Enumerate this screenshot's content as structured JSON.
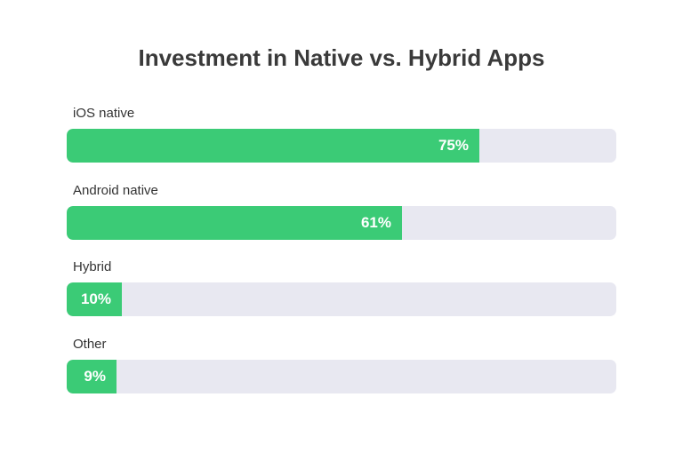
{
  "colors": {
    "bar_fill": "#3bcb76",
    "bar_track": "#e8e8f1",
    "title": "#3a3a3a",
    "label": "#333333",
    "value_text": "#ffffff"
  },
  "chart_data": {
    "type": "bar",
    "orientation": "horizontal",
    "title": "Investment in Native vs. Hybrid Apps",
    "categories": [
      "iOS native",
      "Android native",
      "Hybrid",
      "Other"
    ],
    "values": [
      75,
      61,
      10,
      9
    ],
    "value_labels": [
      "75%",
      "61%",
      "10%",
      "9%"
    ],
    "xlim": [
      0,
      100
    ],
    "grid": false,
    "legend": "none"
  }
}
